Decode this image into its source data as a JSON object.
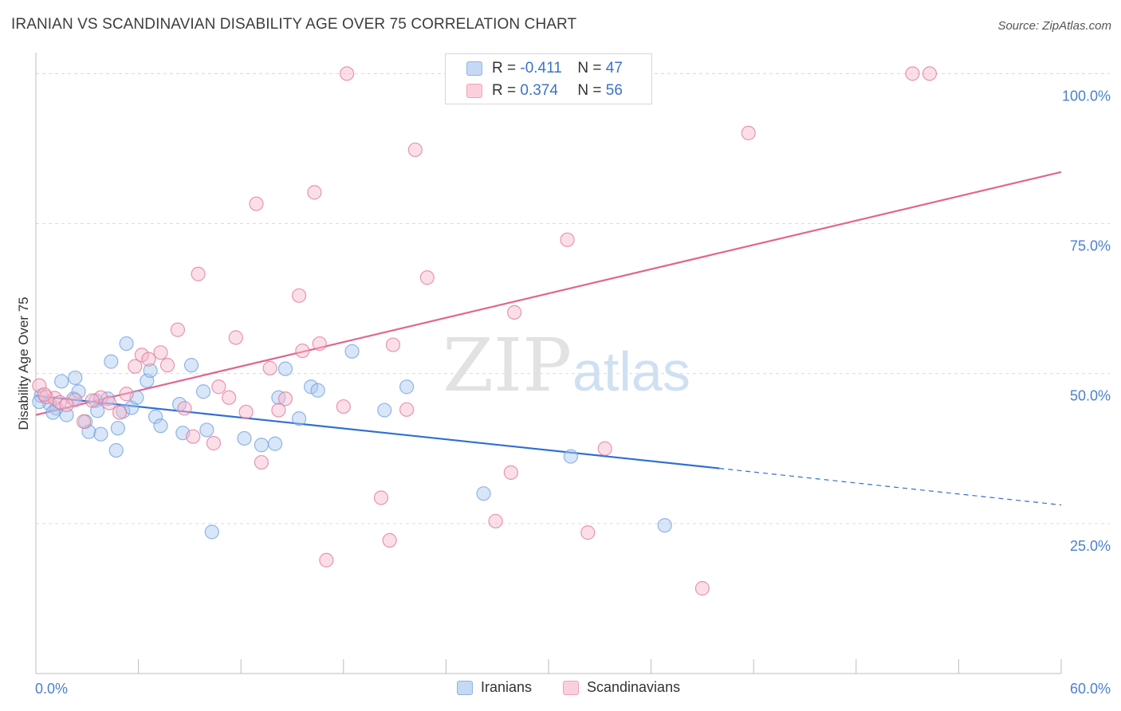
{
  "title": "IRANIAN VS SCANDINAVIAN DISABILITY AGE OVER 75 CORRELATION CHART",
  "source": "Source: ZipAtlas.com",
  "watermark": {
    "part1": "ZIP",
    "part2": "atlas"
  },
  "legend": {
    "rows": [
      {
        "r_label": "R = ",
        "r_value": "-0.411",
        "n_label": "N = ",
        "n_value": "47",
        "color": "#a9c7ef"
      },
      {
        "r_label": "R = ",
        "r_value": "0.374",
        "n_label": "N = ",
        "n_value": "56",
        "color": "#f6b8cb"
      }
    ]
  },
  "bottom_legend": [
    {
      "label": "Iranians",
      "color": "#a9c7ef"
    },
    {
      "label": "Scandinavians",
      "color": "#f6b8cb"
    }
  ],
  "chart_data": {
    "type": "scatter",
    "title": "IRANIAN VS SCANDINAVIAN DISABILITY AGE OVER 75 CORRELATION CHART",
    "xlabel": "",
    "ylabel": "Disability Age Over 75",
    "xlim": [
      0,
      60
    ],
    "ylim": [
      0,
      103.5
    ],
    "x_tick_labels": [
      "0.0%",
      "60.0%"
    ],
    "y_ticks": [
      25,
      50,
      75,
      100
    ],
    "y_tick_labels": [
      "25.0%",
      "50.0%",
      "75.0%",
      "100.0%"
    ],
    "grid": true,
    "legend_position": "top-center",
    "series": [
      {
        "name": "Iranians",
        "color": "#6fa0e0",
        "fill": "#a9c7ef",
        "trend": {
          "x": [
            0,
            40,
            60
          ],
          "y": [
            46.3,
            34.2,
            28.1
          ],
          "solid_until": 40
        },
        "points": [
          [
            0.3,
            46.3
          ],
          [
            0.8,
            45.0
          ],
          [
            1.2,
            44.2
          ],
          [
            1.5,
            48.7
          ],
          [
            1.8,
            43.1
          ],
          [
            2.2,
            45.8
          ],
          [
            2.3,
            49.3
          ],
          [
            2.5,
            47.0
          ],
          [
            2.9,
            42.0
          ],
          [
            3.1,
            40.3
          ],
          [
            3.5,
            45.5
          ],
          [
            3.6,
            43.8
          ],
          [
            3.8,
            39.9
          ],
          [
            4.2,
            45.8
          ],
          [
            4.4,
            52.0
          ],
          [
            4.7,
            37.2
          ],
          [
            4.8,
            40.9
          ],
          [
            5.1,
            43.7
          ],
          [
            5.3,
            55.0
          ],
          [
            5.6,
            44.3
          ],
          [
            5.9,
            46.0
          ],
          [
            6.5,
            48.8
          ],
          [
            6.7,
            50.5
          ],
          [
            7.0,
            42.8
          ],
          [
            7.3,
            41.3
          ],
          [
            8.4,
            44.9
          ],
          [
            8.6,
            40.1
          ],
          [
            9.1,
            51.4
          ],
          [
            9.8,
            47.0
          ],
          [
            10.0,
            40.6
          ],
          [
            10.3,
            23.6
          ],
          [
            12.2,
            39.2
          ],
          [
            13.2,
            38.1
          ],
          [
            14.0,
            38.3
          ],
          [
            14.2,
            46.0
          ],
          [
            14.6,
            50.8
          ],
          [
            15.4,
            42.5
          ],
          [
            16.1,
            47.8
          ],
          [
            16.5,
            47.2
          ],
          [
            18.5,
            53.7
          ],
          [
            20.4,
            43.9
          ],
          [
            21.7,
            47.8
          ],
          [
            26.2,
            30.0
          ],
          [
            31.3,
            36.2
          ],
          [
            36.8,
            24.7
          ],
          [
            0.2,
            45.3
          ],
          [
            1.0,
            43.5
          ]
        ]
      },
      {
        "name": "Scandinavians",
        "color": "#e27597",
        "fill": "#f6b8cb",
        "trend": {
          "x": [
            0,
            60
          ],
          "y": [
            43.1,
            83.6
          ]
        },
        "points": [
          [
            0.2,
            48.0
          ],
          [
            0.6,
            46.1
          ],
          [
            1.1,
            45.9
          ],
          [
            1.4,
            45.2
          ],
          [
            2.3,
            45.6
          ],
          [
            2.8,
            42.0
          ],
          [
            3.8,
            46.0
          ],
          [
            4.3,
            45.1
          ],
          [
            4.9,
            43.5
          ],
          [
            5.3,
            46.6
          ],
          [
            5.8,
            51.2
          ],
          [
            6.2,
            53.1
          ],
          [
            6.6,
            52.4
          ],
          [
            7.3,
            53.5
          ],
          [
            7.7,
            51.4
          ],
          [
            8.3,
            57.3
          ],
          [
            8.7,
            44.2
          ],
          [
            9.2,
            39.5
          ],
          [
            9.5,
            66.6
          ],
          [
            10.4,
            38.4
          ],
          [
            10.7,
            47.8
          ],
          [
            11.3,
            46.0
          ],
          [
            11.7,
            56.0
          ],
          [
            12.3,
            43.6
          ],
          [
            12.9,
            78.3
          ],
          [
            13.2,
            35.2
          ],
          [
            13.7,
            50.9
          ],
          [
            14.2,
            43.9
          ],
          [
            14.6,
            45.8
          ],
          [
            15.4,
            63.0
          ],
          [
            15.6,
            53.8
          ],
          [
            16.3,
            80.2
          ],
          [
            16.6,
            55.0
          ],
          [
            17.0,
            18.9
          ],
          [
            18.0,
            44.5
          ],
          [
            18.2,
            100.0
          ],
          [
            20.2,
            29.3
          ],
          [
            20.7,
            22.2
          ],
          [
            20.9,
            54.8
          ],
          [
            21.7,
            44.0
          ],
          [
            22.2,
            87.3
          ],
          [
            22.9,
            66.0
          ],
          [
            26.9,
            25.4
          ],
          [
            27.8,
            33.5
          ],
          [
            28.0,
            60.2
          ],
          [
            30.9,
            100.0
          ],
          [
            31.1,
            72.3
          ],
          [
            32.3,
            23.5
          ],
          [
            33.3,
            37.5
          ],
          [
            39.0,
            14.2
          ],
          [
            41.7,
            90.1
          ],
          [
            51.3,
            100.0
          ],
          [
            52.3,
            100.0
          ],
          [
            0.5,
            46.5
          ],
          [
            1.8,
            44.8
          ],
          [
            3.3,
            45.5
          ]
        ]
      }
    ]
  }
}
